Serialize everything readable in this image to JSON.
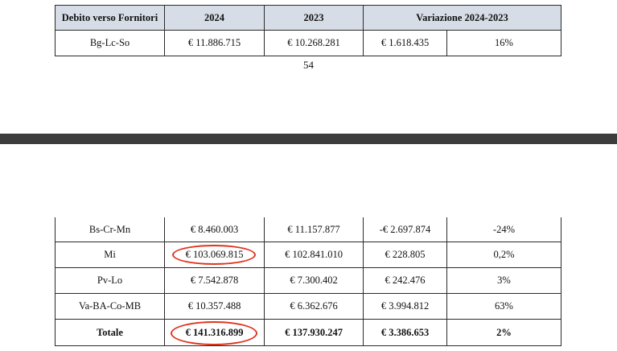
{
  "top_table": {
    "headers": [
      "Debito verso Fornitori",
      "2024",
      "2023",
      "Variazione 2024-2023"
    ],
    "rows": [
      [
        "Bg-Lc-So",
        "€ 11.886.715",
        "€ 10.268.281",
        "€ 1.618.435",
        "16%"
      ]
    ]
  },
  "page_number": "54",
  "bottom_table": {
    "rows": [
      [
        "Bs-Cr-Mn",
        "€ 8.460.003",
        "€ 11.157.877",
        "-€ 2.697.874",
        "-24%"
      ],
      [
        "Mi",
        "€ 103.069.815",
        "€ 102.841.010",
        "€ 228.805",
        "0,2%"
      ],
      [
        "Pv-Lo",
        "€ 7.542.878",
        "€ 7.300.402",
        "€ 242.476",
        "3%"
      ],
      [
        "Va-BA-Co-MB",
        "€ 10.357.488",
        "€ 6.362.676",
        "€ 3.994.812",
        "63%"
      ],
      [
        "Totale",
        "€ 141.316.899",
        "€ 137.930.247",
        "€ 3.386.653",
        "2%"
      ]
    ]
  },
  "highlight_color": "#e0341d",
  "header_fill_color": "#d6dde6"
}
